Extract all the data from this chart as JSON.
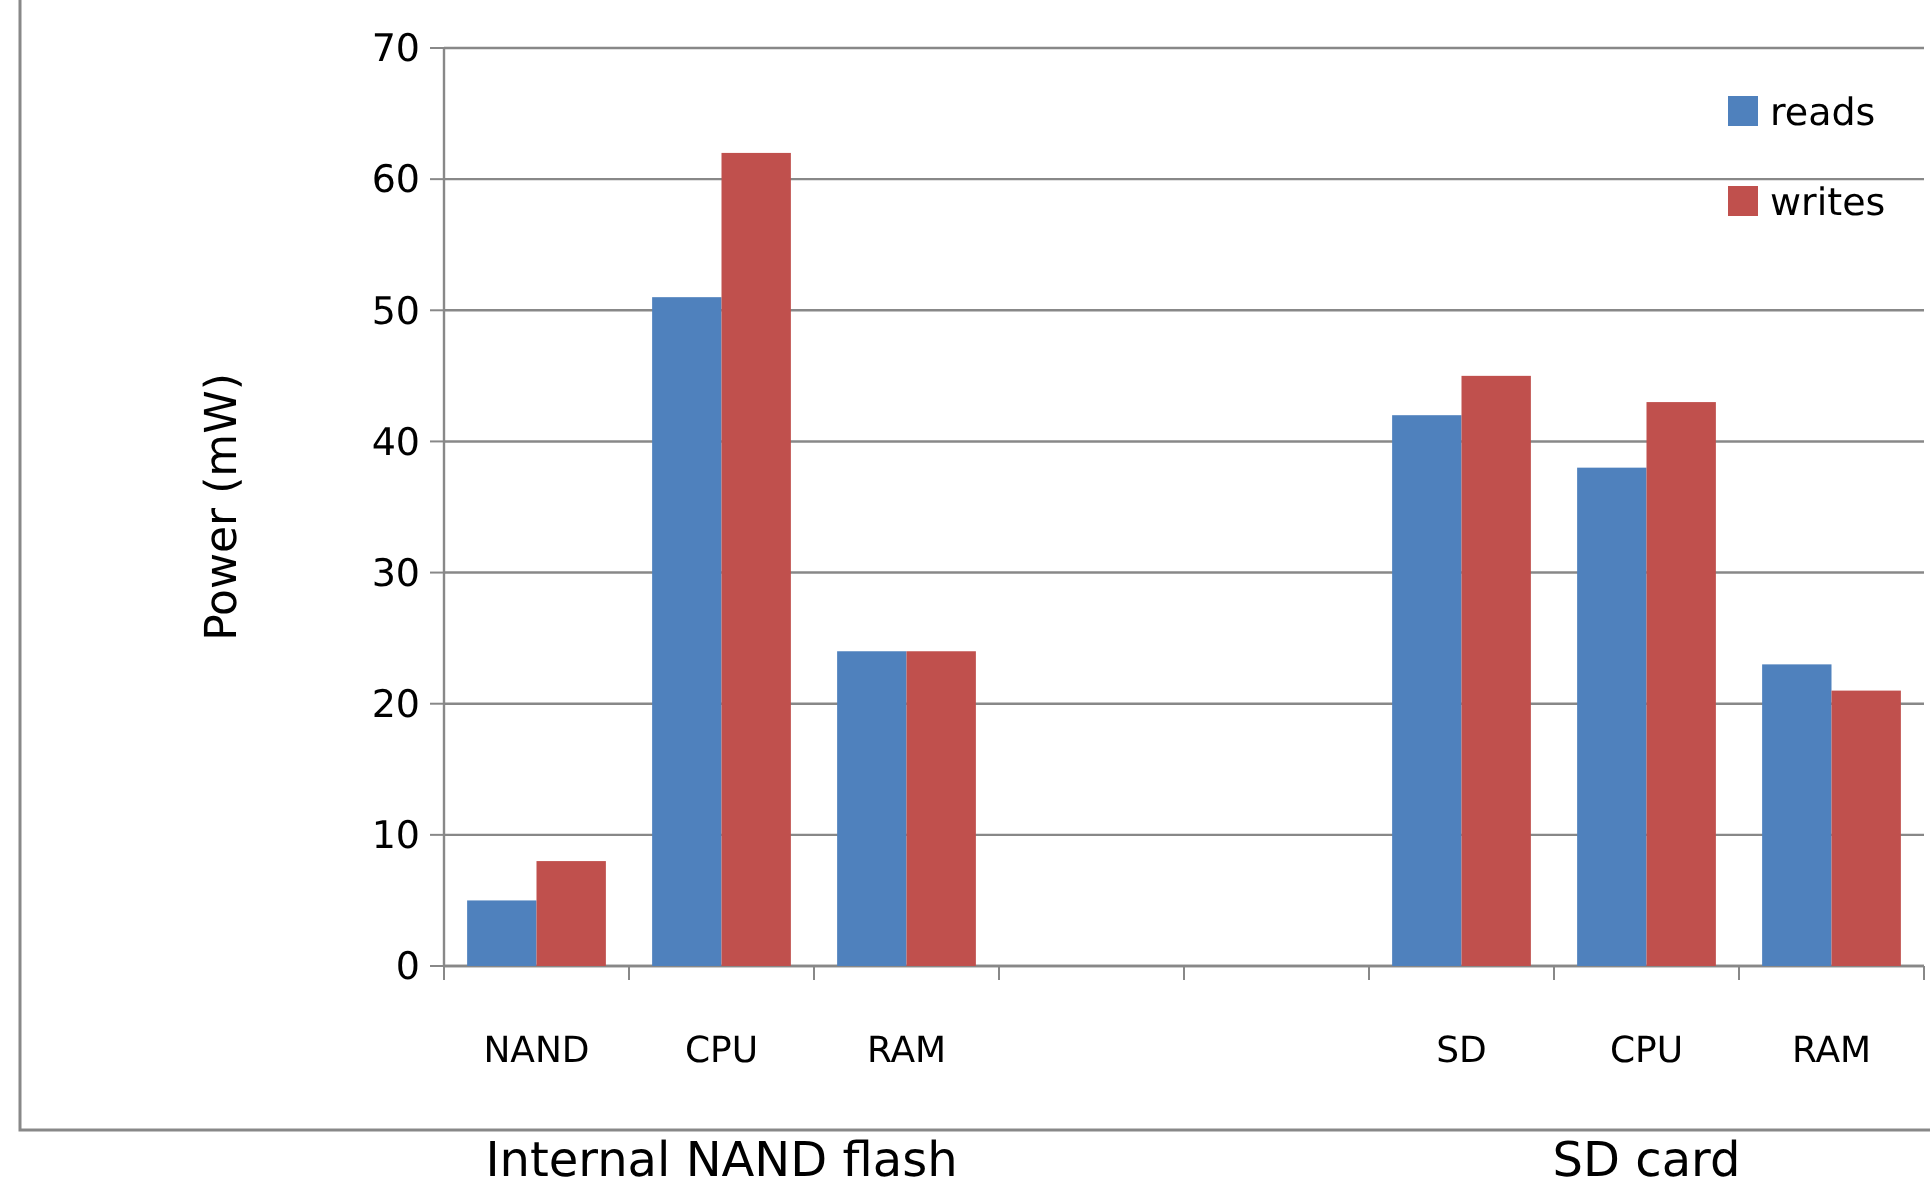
{
  "chart_data": {
    "type": "bar",
    "ylabel": "Power (mW)",
    "categories": [
      "NAND",
      "CPU",
      "RAM",
      null,
      null,
      "SD",
      "CPU",
      "RAM"
    ],
    "series": [
      {
        "name": "reads",
        "color": "#4f81bd",
        "values": [
          5,
          51,
          24,
          null,
          null,
          42,
          38,
          23
        ]
      },
      {
        "name": "writes",
        "color": "#c0504d",
        "values": [
          8,
          62,
          24,
          null,
          null,
          45,
          43,
          21
        ]
      }
    ],
    "ylim": [
      0,
      70
    ],
    "yticks": [
      0,
      10,
      20,
      30,
      40,
      50,
      60,
      70
    ],
    "grid": "y",
    "legend": "top right",
    "annotations": [
      "Internal NAND flash",
      "SD card"
    ]
  }
}
